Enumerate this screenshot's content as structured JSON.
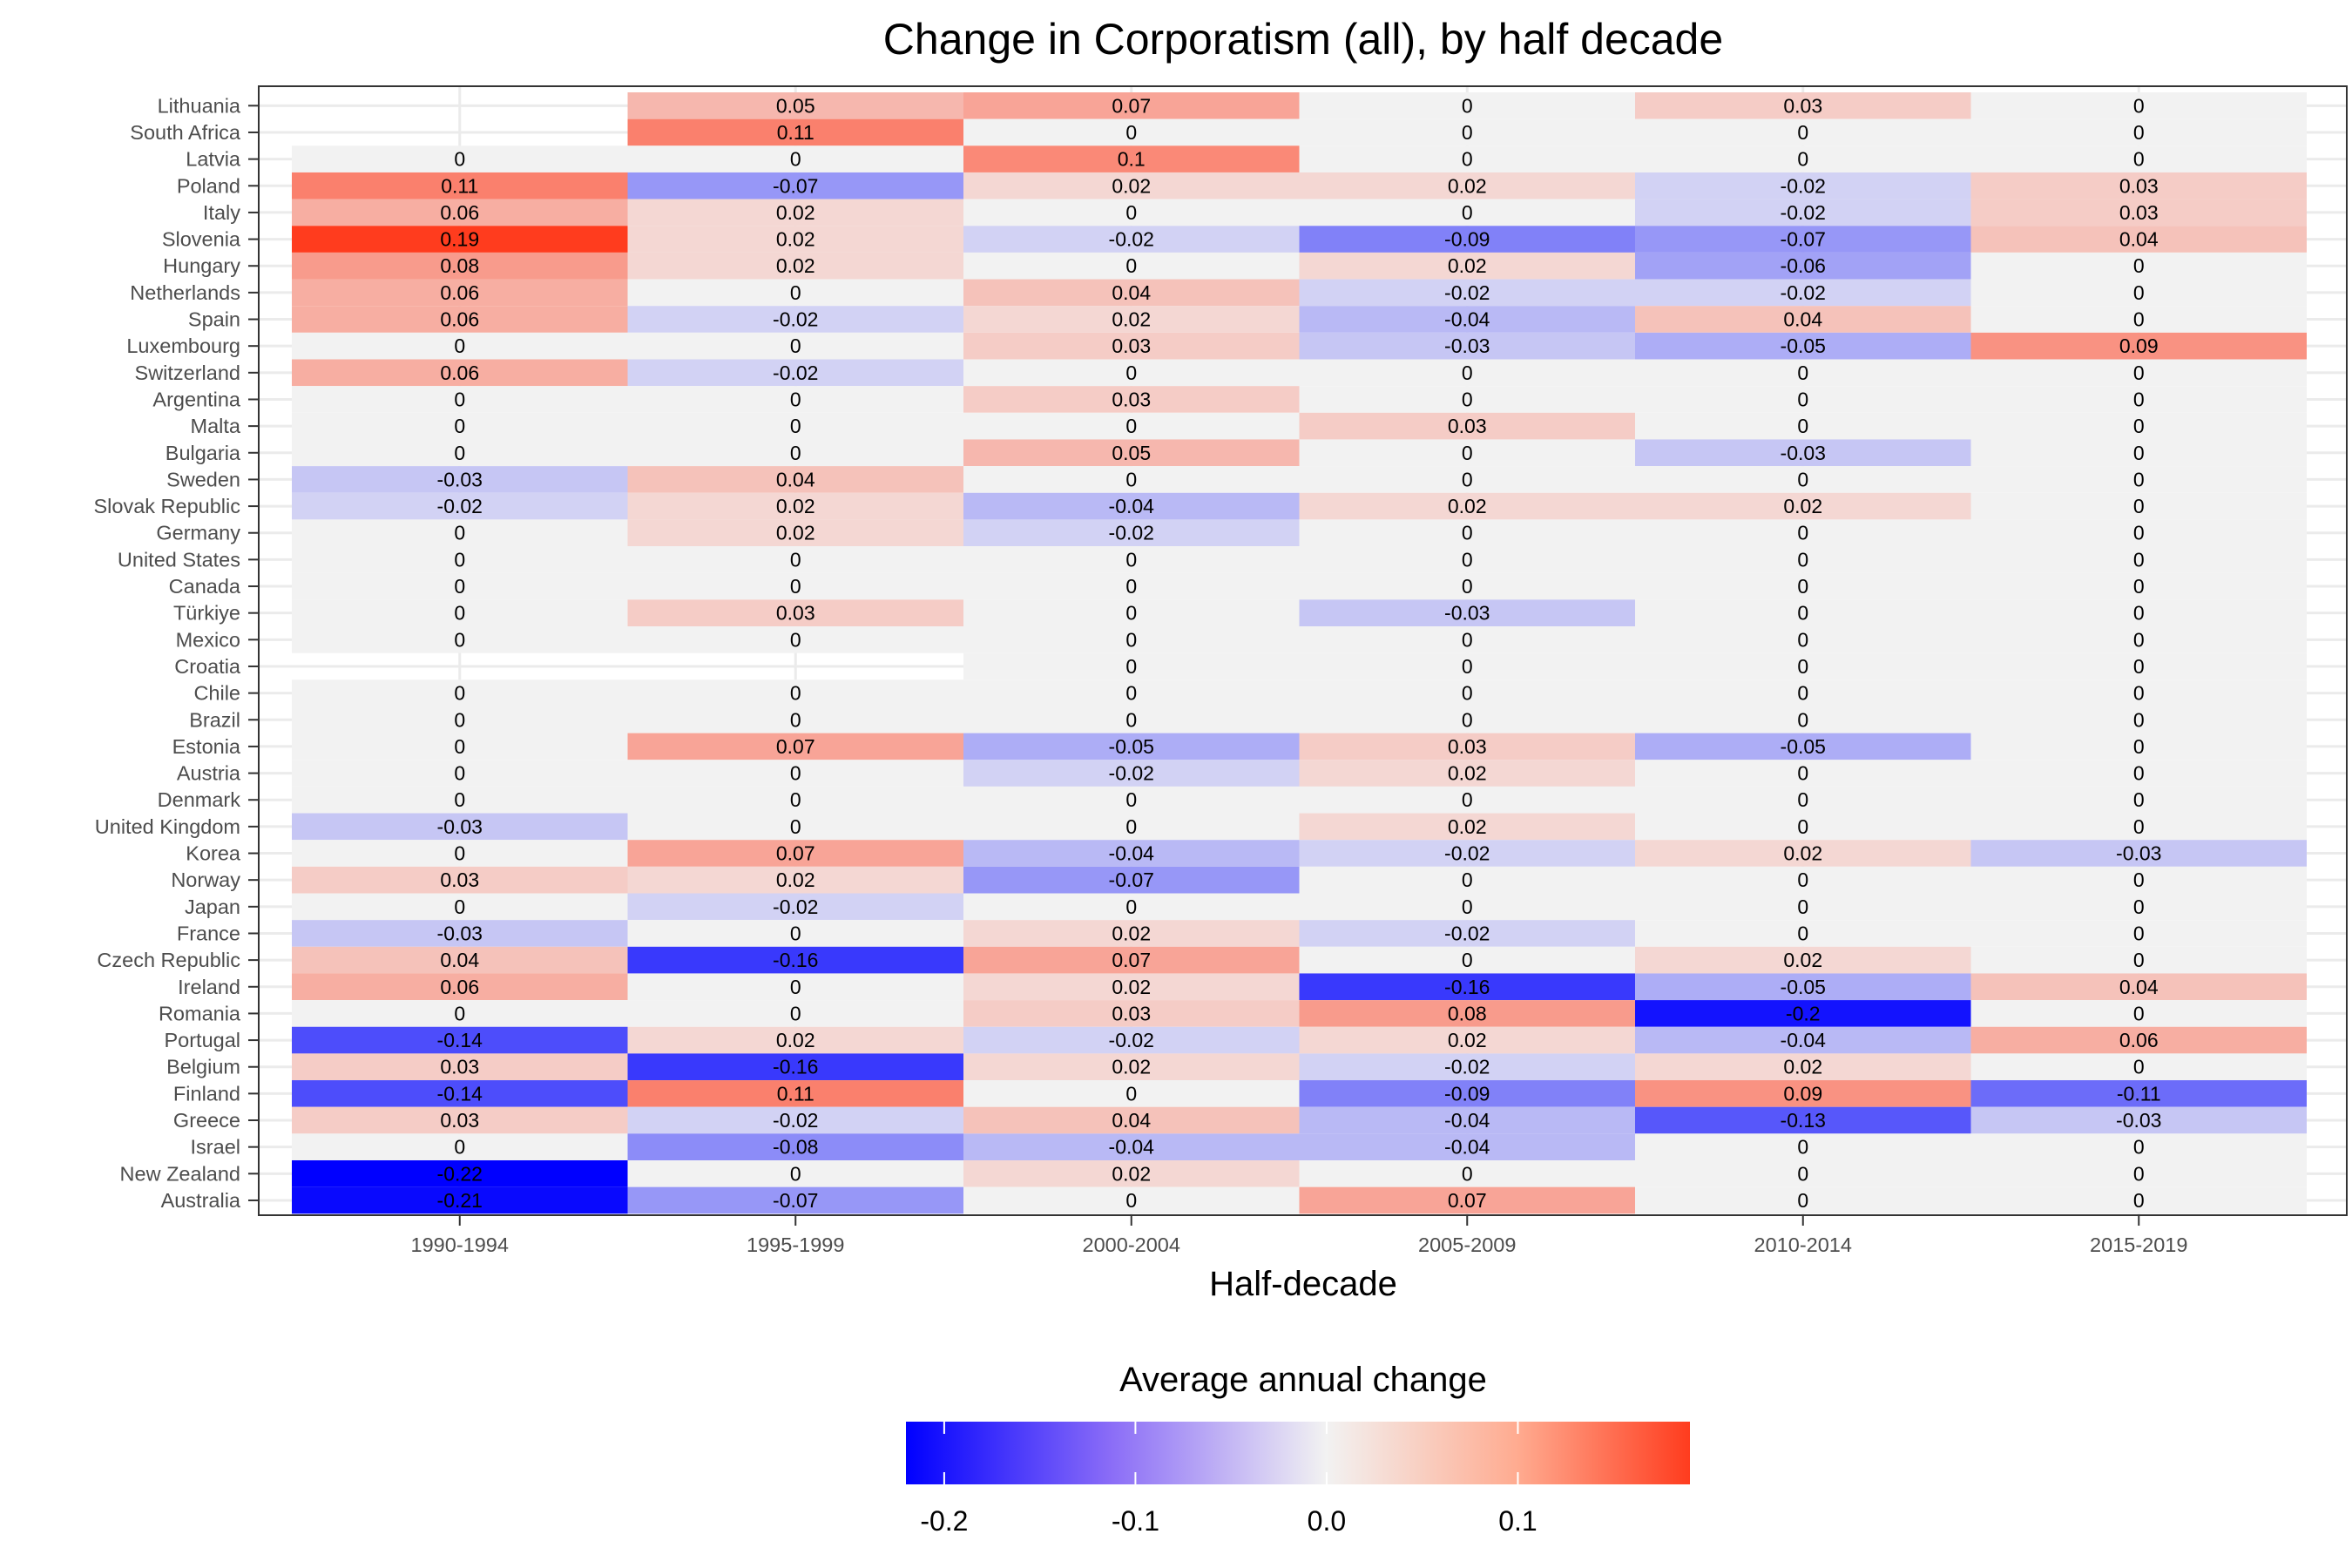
{
  "chart_data": {
    "type": "heatmap",
    "title": "Change in Corporatism (all), by half decade",
    "xlabel": "Half-decade",
    "ylabel": "",
    "x": [
      "1990-1994",
      "1995-1999",
      "2000-2004",
      "2005-2009",
      "2010-2014",
      "2015-2019"
    ],
    "y": [
      "Lithuania",
      "South Africa",
      "Latvia",
      "Poland",
      "Italy",
      "Slovenia",
      "Hungary",
      "Netherlands",
      "Spain",
      "Luxembourg",
      "Switzerland",
      "Argentina",
      "Malta",
      "Bulgaria",
      "Sweden",
      "Slovak Republic",
      "Germany",
      "United States",
      "Canada",
      "Türkiye",
      "Mexico",
      "Croatia",
      "Chile",
      "Brazil",
      "Estonia",
      "Austria",
      "Denmark",
      "United Kingdom",
      "Korea",
      "Norway",
      "Japan",
      "France",
      "Czech Republic",
      "Ireland",
      "Romania",
      "Portugal",
      "Belgium",
      "Finland",
      "Greece",
      "Israel",
      "New Zealand",
      "Australia"
    ],
    "values": [
      [
        null,
        0.05,
        0.07,
        0,
        0.03,
        0
      ],
      [
        null,
        0.11,
        0,
        0,
        0,
        0
      ],
      [
        0,
        0,
        0.1,
        0,
        0,
        0
      ],
      [
        0.11,
        -0.07,
        0.02,
        0.02,
        -0.02,
        0.03
      ],
      [
        0.06,
        0.02,
        0,
        0,
        -0.02,
        0.03
      ],
      [
        0.19,
        0.02,
        -0.02,
        -0.09,
        -0.07,
        0.04
      ],
      [
        0.08,
        0.02,
        0,
        0.02,
        -0.06,
        0
      ],
      [
        0.06,
        0,
        0.04,
        -0.02,
        -0.02,
        0
      ],
      [
        0.06,
        -0.02,
        0.02,
        -0.04,
        0.04,
        0
      ],
      [
        0,
        0,
        0.03,
        -0.03,
        -0.05,
        0.09
      ],
      [
        0.06,
        -0.02,
        0,
        0,
        0,
        0
      ],
      [
        0,
        0,
        0.03,
        0,
        0,
        0
      ],
      [
        0,
        0,
        0,
        0.03,
        0,
        0
      ],
      [
        0,
        0,
        0.05,
        0,
        -0.03,
        0
      ],
      [
        -0.03,
        0.04,
        0,
        0,
        0,
        0
      ],
      [
        -0.02,
        0.02,
        -0.04,
        0.02,
        0.02,
        0
      ],
      [
        0,
        0.02,
        -0.02,
        0,
        0,
        0
      ],
      [
        0,
        0,
        0,
        0,
        0,
        0
      ],
      [
        0,
        0,
        0,
        0,
        0,
        0
      ],
      [
        0,
        0.03,
        0,
        -0.03,
        0,
        0
      ],
      [
        0,
        0,
        0,
        0,
        0,
        0
      ],
      [
        null,
        null,
        0,
        0,
        0,
        0
      ],
      [
        0,
        0,
        0,
        0,
        0,
        0
      ],
      [
        0,
        0,
        0,
        0,
        0,
        0
      ],
      [
        0,
        0.07,
        -0.05,
        0.03,
        -0.05,
        0
      ],
      [
        0,
        0,
        -0.02,
        0.02,
        0,
        0
      ],
      [
        0,
        0,
        0,
        0,
        0,
        0
      ],
      [
        -0.03,
        0,
        0,
        0.02,
        0,
        0
      ],
      [
        0,
        0.07,
        -0.04,
        -0.02,
        0.02,
        -0.03
      ],
      [
        0.03,
        0.02,
        -0.07,
        0,
        0,
        0
      ],
      [
        0,
        -0.02,
        0,
        0,
        0,
        0
      ],
      [
        -0.03,
        0,
        0.02,
        -0.02,
        0,
        0
      ],
      [
        0.04,
        -0.16,
        0.07,
        0,
        0.02,
        0
      ],
      [
        0.06,
        0,
        0.02,
        -0.16,
        -0.05,
        0.04
      ],
      [
        0,
        0,
        0.03,
        0.08,
        -0.2,
        0
      ],
      [
        -0.14,
        0.02,
        -0.02,
        0.02,
        -0.04,
        0.06
      ],
      [
        0.03,
        -0.16,
        0.02,
        -0.02,
        0.02,
        0
      ],
      [
        -0.14,
        0.11,
        0,
        -0.09,
        0.09,
        -0.11
      ],
      [
        0.03,
        -0.02,
        0.04,
        -0.04,
        -0.13,
        -0.03
      ],
      [
        0,
        -0.08,
        -0.04,
        -0.04,
        0,
        0
      ],
      [
        -0.22,
        0,
        0.02,
        0,
        0,
        0
      ],
      [
        -0.21,
        -0.07,
        0,
        0.07,
        0,
        0
      ]
    ],
    "colorscale": {
      "low": "#0000ff",
      "mid": "#f2f2f2",
      "high": "#ff3c1e",
      "min": -0.22,
      "max": 0.19
    },
    "grid": true,
    "legend": {
      "title": "Average annual change",
      "position": "bottom",
      "ticks": [
        -0.2,
        -0.1,
        0.0,
        0.1
      ],
      "tick_labels": [
        "-0.2",
        "-0.1",
        "0.0",
        "0.1"
      ]
    }
  }
}
